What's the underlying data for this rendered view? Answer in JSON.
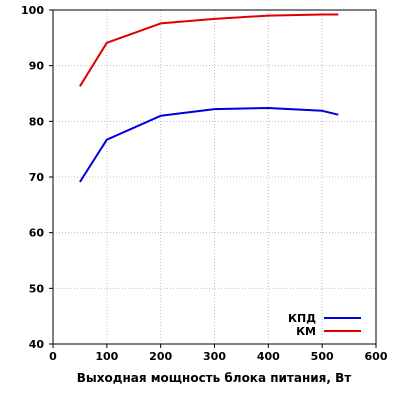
{
  "chart_data": {
    "type": "line",
    "title": "",
    "xlabel": "Выходная мощность блока питания, Вт",
    "ylabel": "",
    "xlim": [
      0,
      600
    ],
    "ylim": [
      40,
      100
    ],
    "x_ticks": [
      "0",
      "100",
      "200",
      "300",
      "400",
      "500",
      "600"
    ],
    "y_ticks": [
      "40",
      "50",
      "60",
      "70",
      "80",
      "90",
      "100"
    ],
    "grid": true,
    "legend_position": "bottom-right",
    "series": [
      {
        "name": "КПД",
        "color": "#0000dd",
        "x": [
          50,
          100,
          200,
          300,
          400,
          500,
          530
        ],
        "y": [
          69.1,
          76.7,
          81.0,
          82.2,
          82.4,
          81.9,
          81.2
        ]
      },
      {
        "name": "КМ",
        "color": "#dd0000",
        "x": [
          50,
          100,
          200,
          300,
          400,
          500,
          530
        ],
        "y": [
          86.3,
          94.1,
          97.6,
          98.4,
          99.0,
          99.2,
          99.2
        ]
      }
    ]
  }
}
